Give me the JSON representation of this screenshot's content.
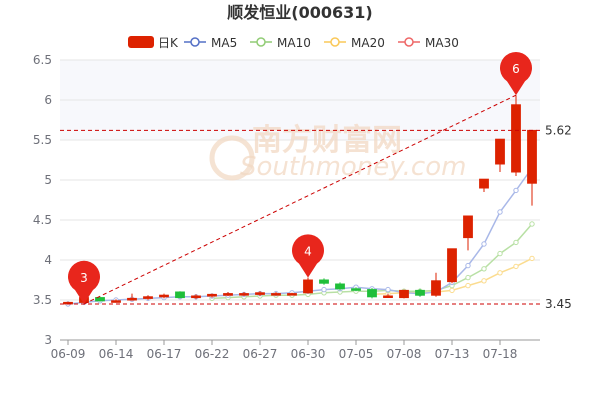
{
  "chart_data": {
    "type": "candlestick",
    "title": "顺发恒业(000631)",
    "watermark": {
      "cn": "南方财富网",
      "en": "Southmoney.com"
    },
    "legend": [
      {
        "label": "日K",
        "color": "#dd2200",
        "kind": "candle"
      },
      {
        "label": "MA5",
        "color": "#5470c6",
        "kind": "line"
      },
      {
        "label": "MA10",
        "color": "#91cc75",
        "kind": "line"
      },
      {
        "label": "MA20",
        "color": "#fac858",
        "kind": "line"
      },
      {
        "label": "MA30",
        "color": "#ee6666",
        "kind": "line"
      }
    ],
    "colors": {
      "up": "#dd2200",
      "down": "#1fbf3a",
      "ma5": "#a9b8e8",
      "ma10": "#b8e0a4",
      "ma20": "#fbdc8f",
      "plot_bg_upper": "#f7f8fc",
      "ref_line": "#cc0000"
    },
    "ylim": [
      3,
      6.5
    ],
    "yticks": [
      "3",
      "3.5",
      "4",
      "4.5",
      "5",
      "5.5",
      "6",
      "6.5"
    ],
    "xticks": [
      {
        "index": 0,
        "label": "06-09"
      },
      {
        "index": 3,
        "label": "06-14"
      },
      {
        "index": 6,
        "label": "06-17"
      },
      {
        "index": 9,
        "label": "06-22"
      },
      {
        "index": 12,
        "label": "06-27"
      },
      {
        "index": 15,
        "label": "06-30"
      },
      {
        "index": 18,
        "label": "07-05"
      },
      {
        "index": 21,
        "label": "07-08"
      },
      {
        "index": 24,
        "label": "07-13"
      },
      {
        "index": 27,
        "label": "07-18"
      }
    ],
    "candles": [
      [
        3.46,
        3.47,
        3.45,
        3.48
      ],
      [
        3.47,
        3.53,
        3.45,
        3.55
      ],
      [
        3.53,
        3.49,
        3.48,
        3.54
      ],
      [
        3.49,
        3.49,
        3.47,
        3.51
      ],
      [
        3.5,
        3.52,
        3.49,
        3.58
      ],
      [
        3.52,
        3.54,
        3.5,
        3.56
      ],
      [
        3.54,
        3.56,
        3.52,
        3.58
      ],
      [
        3.6,
        3.53,
        3.52,
        3.61
      ],
      [
        3.53,
        3.55,
        3.51,
        3.57
      ],
      [
        3.55,
        3.57,
        3.53,
        3.58
      ],
      [
        3.56,
        3.58,
        3.55,
        3.6
      ],
      [
        3.57,
        3.58,
        3.55,
        3.6
      ],
      [
        3.57,
        3.59,
        3.55,
        3.61
      ],
      [
        3.58,
        3.58,
        3.56,
        3.6
      ],
      [
        3.57,
        3.58,
        3.56,
        3.59
      ],
      [
        3.59,
        3.75,
        3.58,
        3.78
      ],
      [
        3.75,
        3.71,
        3.69,
        3.77
      ],
      [
        3.7,
        3.64,
        3.62,
        3.72
      ],
      [
        3.64,
        3.63,
        3.61,
        3.66
      ],
      [
        3.63,
        3.54,
        3.52,
        3.65
      ],
      [
        3.55,
        3.55,
        3.53,
        3.58
      ],
      [
        3.53,
        3.62,
        3.52,
        3.63
      ],
      [
        3.62,
        3.56,
        3.54,
        3.64
      ],
      [
        3.56,
        3.74,
        3.54,
        3.84
      ],
      [
        3.73,
        4.14,
        3.71,
        4.14
      ],
      [
        4.28,
        4.55,
        4.12,
        4.55
      ],
      [
        4.9,
        5.01,
        4.85,
        5.01
      ],
      [
        5.2,
        5.51,
        5.1,
        5.51
      ],
      [
        5.1,
        5.94,
        5.05,
        6.06
      ],
      [
        4.96,
        5.62,
        4.68,
        5.62
      ]
    ],
    "ma5": [
      3.45,
      3.47,
      3.49,
      3.5,
      3.51,
      3.52,
      3.53,
      3.54,
      3.54,
      3.55,
      3.56,
      3.57,
      3.58,
      3.58,
      3.59,
      3.61,
      3.63,
      3.64,
      3.66,
      3.64,
      3.63,
      3.59,
      3.58,
      3.6,
      3.72,
      3.93,
      4.2,
      4.6,
      4.87,
      5.15
    ],
    "ma10": [
      null,
      null,
      null,
      null,
      null,
      null,
      null,
      null,
      null,
      3.52,
      3.53,
      3.54,
      3.55,
      3.56,
      3.56,
      3.57,
      3.59,
      3.6,
      3.61,
      3.61,
      3.62,
      3.61,
      3.61,
      3.62,
      3.68,
      3.78,
      3.89,
      4.08,
      4.22,
      4.45
    ],
    "ma20": [
      null,
      null,
      null,
      null,
      null,
      null,
      null,
      null,
      null,
      null,
      null,
      null,
      null,
      null,
      null,
      null,
      null,
      null,
      null,
      3.57,
      3.58,
      3.59,
      3.59,
      3.6,
      3.62,
      3.68,
      3.74,
      3.84,
      3.92,
      4.02
    ],
    "pins": [
      {
        "label": "3",
        "index": 1,
        "value": 3.45
      },
      {
        "label": "4",
        "index": 15,
        "value": 3.78
      },
      {
        "label": "6",
        "index": 28,
        "value": 6.06
      }
    ],
    "ref_lines": [
      {
        "value": 5.62,
        "label": "5.62"
      },
      {
        "value": 3.45,
        "label": "3.45"
      }
    ]
  }
}
